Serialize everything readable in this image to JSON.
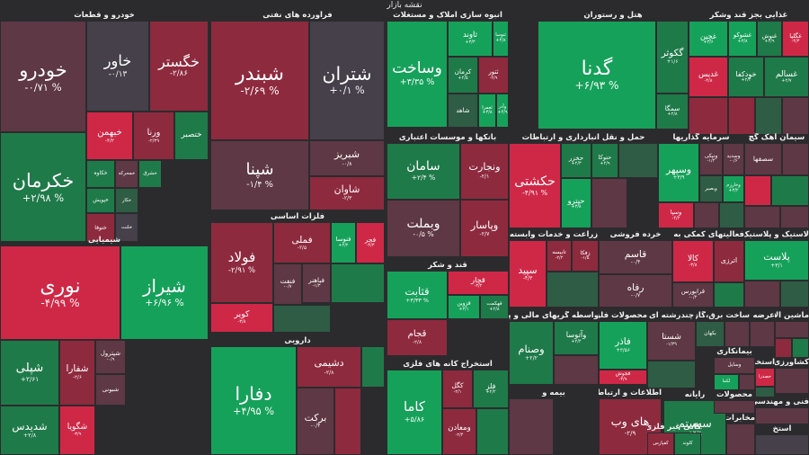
{
  "title": "نقشه بازار",
  "colors": {
    "strong_pos": "#16a15a",
    "mid_pos": "#1f7a49",
    "weak_pos": "#2f5c45",
    "neutral": "#45404a",
    "weak_neg": "#5e3844",
    "mid_neg": "#8e2a3e",
    "strong_neg": "#cf2847"
  },
  "chart_data": {
    "type": "treemap",
    "title": "نقشه بازار",
    "sections": [
      {
        "label": "خودرو و قطعات",
        "tiles": [
          {
            "name": "خودرو",
            "change": "-۰/۷۱ %",
            "v": -0.71
          },
          {
            "name": "خاور",
            "change": "-۰/۱۳",
            "v": -0.13
          },
          {
            "name": "خگستر",
            "change": "-۲/۸۶",
            "v": -2.86
          },
          {
            "name": "خکرمان",
            "change": "+۲/۹۸ %",
            "v": 2.98
          },
          {
            "name": "خبهمن",
            "change": "-۴/۲",
            "v": -4.2
          },
          {
            "name": "ورنا",
            "change": "-۲/۳۹",
            "v": -2.39
          },
          {
            "name": "ختصبر",
            "change": "",
            "v": 1.5
          },
          {
            "name": "خکاوه",
            "change": "",
            "v": 1.5
          },
          {
            "name": "خمحرکه",
            "change": "",
            "v": -0.5
          },
          {
            "name": "خشرق",
            "change": "",
            "v": 1.5
          },
          {
            "name": "خپویش",
            "change": "",
            "v": 1.5
          },
          {
            "name": "خکار",
            "change": "",
            "v": 1.2
          },
          {
            "name": "ختوقا",
            "change": "",
            "v": -1.5
          },
          {
            "name": "خلنت",
            "change": "",
            "v": -0.2
          }
        ]
      },
      {
        "label": "فرآورده های نفتی",
        "tiles": [
          {
            "name": "شبندر",
            "change": "-۲/۶۹ %",
            "v": -2.69
          },
          {
            "name": "شتران",
            "change": "+۰/۱ %",
            "v": 0.1
          },
          {
            "name": "شپنا",
            "change": "-۱/۴ %",
            "v": -1.4
          },
          {
            "name": "شبریز",
            "change": "-۰/۸",
            "v": -0.8
          },
          {
            "name": "شاوان",
            "change": "-۲/۳",
            "v": -2.3
          }
        ]
      },
      {
        "label": "انبوه سازی املاک و مستغلات",
        "tiles": [
          {
            "name": "وساخت",
            "change": "+۳/۳۵ %",
            "v": 3.35
          },
          {
            "name": "ثاوند",
            "change": "+۳/۳",
            "v": 3.3
          },
          {
            "name": "ثنوسا",
            "change": "+۴/۸",
            "v": 4.8
          },
          {
            "name": "کرمان",
            "change": "+۲/۵",
            "v": 2.5
          },
          {
            "name": "ثتور",
            "change": "-۲/۹",
            "v": -2.9
          },
          {
            "name": "شاهد",
            "change": "",
            "v": 0.3
          },
          {
            "name": "ثعمرا",
            "change": "+۳/۸",
            "v": 3.8
          },
          {
            "name": "وآذر",
            "change": "+۴/۹",
            "v": 4.9
          }
        ]
      },
      {
        "label": "هتل و رستوران",
        "tiles": [
          {
            "name": "گدنا",
            "change": "+۶/۹۳ %",
            "v": 6.93
          },
          {
            "name": "گکوثر",
            "change": "+۱/۶",
            "v": 1.6
          },
          {
            "name": "سمگا",
            "change": "+۲/۸",
            "v": 2.8
          }
        ]
      },
      {
        "label": "غذایی بجز قند وشکر",
        "tiles": [
          {
            "name": "غچین",
            "change": "+۳/۶",
            "v": 3.6
          },
          {
            "name": "غشوکو",
            "change": "+۳/۸",
            "v": 3.8
          },
          {
            "name": "غنوش",
            "change": "+۲/۹",
            "v": 2.9
          },
          {
            "name": "غگلپا",
            "change": "-۴/۳",
            "v": -4.3
          },
          {
            "name": "غدیس",
            "change": "-۴/۸",
            "v": -4.8
          },
          {
            "name": "خودکفا",
            "change": "+۲/۴",
            "v": 2.4
          },
          {
            "name": "غسالم",
            "change": "+۲/۷",
            "v": 2.7
          },
          {
            "name": "",
            "change": "",
            "v": -1.5
          },
          {
            "name": "",
            "change": "",
            "v": -2.5
          },
          {
            "name": "",
            "change": "",
            "v": 0.4
          },
          {
            "name": "",
            "change": "",
            "v": -1.2
          }
        ]
      },
      {
        "label": "حمل و نقل انبارداری و ارتباطات",
        "tiles": [
          {
            "name": "حکشتی",
            "change": "-۴/۹۱ %",
            "v": -4.91
          },
          {
            "name": "حخزر",
            "change": "+۲/۳",
            "v": 2.3
          },
          {
            "name": "حتوکا",
            "change": "+۲/۹",
            "v": 2.9
          },
          {
            "name": "حپترو",
            "change": "+۳/۸",
            "v": 3.8
          },
          {
            "name": "",
            "change": "",
            "v": -0.4
          },
          {
            "name": "",
            "change": "",
            "v": 1.0
          }
        ]
      },
      {
        "label": "بانکها و موسسات اعتباری",
        "tiles": [
          {
            "name": "سامان",
            "change": "+۲/۴ %",
            "v": 2.4
          },
          {
            "name": "ونجارت",
            "change": "-۲/۱",
            "v": -2.1
          },
          {
            "name": "وبملت",
            "change": "-۰/۵ %",
            "v": -0.5
          },
          {
            "name": "وپاسار",
            "change": "-۲/۷",
            "v": -2.7
          },
          {
            "name": "",
            "change": "",
            "v": 0.6
          }
        ]
      },
      {
        "label": "سرمایه گذاریها",
        "tiles": [
          {
            "name": "وسپهر",
            "change": "+۳/۹",
            "v": 3.9
          },
          {
            "name": "ونیکی",
            "change": "-۱/۲",
            "v": -1.2
          },
          {
            "name": "وسدید",
            "change": "-۰/۶",
            "v": -0.6
          },
          {
            "name": "وبصیر",
            "change": "",
            "v": 0.5
          },
          {
            "name": "وسپا",
            "change": "-۴/۲",
            "v": -4.2
          },
          {
            "name": "وخارزم",
            "change": "+۳/۲",
            "v": 3.2
          },
          {
            "name": "",
            "change": "",
            "v": -0.3
          },
          {
            "name": "",
            "change": "",
            "v": 1.2
          },
          {
            "name": "",
            "change": "",
            "v": -1.8
          }
        ]
      },
      {
        "label": "سیمان آهک گچ",
        "tiles": [
          {
            "name": "سصفها",
            "change": "",
            "v": -0.4
          },
          {
            "name": "",
            "change": "",
            "v": -0.8
          },
          {
            "name": "",
            "change": "",
            "v": -3.2
          },
          {
            "name": "",
            "change": "",
            "v": 1.6
          },
          {
            "name": "",
            "change": "",
            "v": -0.3
          },
          {
            "name": "",
            "change": "",
            "v": -0.6
          }
        ]
      },
      {
        "label": "شیمیایی",
        "tiles": [
          {
            "name": "نوری",
            "change": "-۴/۹۹ %",
            "v": -4.99
          },
          {
            "name": "شیراز",
            "change": "+۶/۹۶ %",
            "v": 6.96
          },
          {
            "name": "شپلی",
            "change": "+۲/۶۱",
            "v": 2.61
          },
          {
            "name": "شفارا",
            "change": "-۲/۶",
            "v": -2.6
          },
          {
            "name": "شپترول",
            "change": "-۰/۹",
            "v": -0.9
          },
          {
            "name": "شبونی",
            "change": "",
            "v": -0.3
          },
          {
            "name": "شدیدس",
            "change": "+۲/۸",
            "v": 2.8
          },
          {
            "name": "شگویا",
            "change": "-۳/۹",
            "v": -3.9
          }
        ]
      },
      {
        "label": "فلزات اساسی",
        "tiles": [
          {
            "name": "فولاد",
            "change": "-۲/۹۱ %",
            "v": -2.91
          },
          {
            "name": "فملی",
            "change": "-۲/۵",
            "v": -2.5
          },
          {
            "name": "فنوسا",
            "change": "+۴/۲",
            "v": 4.2
          },
          {
            "name": "فجر",
            "change": "-۴/۳",
            "v": -4.3
          },
          {
            "name": "فنفت",
            "change": "-۰/۷",
            "v": -0.7
          },
          {
            "name": "فباهنر",
            "change": "-۱/۳",
            "v": -1.3
          },
          {
            "name": "کویر",
            "change": "-۳/۸",
            "v": -3.8
          },
          {
            "name": "",
            "change": "",
            "v": 2.4
          },
          {
            "name": "",
            "change": "",
            "v": 1.4
          }
        ]
      },
      {
        "label": "دارویی",
        "tiles": [
          {
            "name": "دفارا",
            "change": "+۴/۹۵ %",
            "v": 4.95
          },
          {
            "name": "دشیمی",
            "change": "-۲/۸",
            "v": -2.8
          },
          {
            "name": "برکت",
            "change": "-۰/۴",
            "v": -0.4
          },
          {
            "name": "",
            "change": "",
            "v": 2.6
          },
          {
            "name": "",
            "change": "",
            "v": -1.6
          }
        ]
      },
      {
        "label": "قند و شکر",
        "tiles": [
          {
            "name": "قثابت",
            "change": "+۳/۳۳ %",
            "v": 3.33
          },
          {
            "name": "قچار",
            "change": "-۳/۲",
            "v": -3.2
          },
          {
            "name": "قزوین",
            "change": "+۳/۱",
            "v": 3.1
          },
          {
            "name": "قهکمت",
            "change": "+۲/۸",
            "v": 2.8
          },
          {
            "name": "قجام",
            "change": "-۲/۸",
            "v": -2.8
          }
        ]
      },
      {
        "label": "زراعت و خدمات وابسته",
        "tiles": [
          {
            "name": "سپید",
            "change": "-۴/۳",
            "v": -4.3
          },
          {
            "name": "تابیسه",
            "change": "-۲/۲",
            "v": -2.2
          },
          {
            "name": "زفکا",
            "change": "-۱/۵",
            "v": -1.5
          },
          {
            "name": "",
            "change": "",
            "v": 0.6
          }
        ]
      },
      {
        "label": "خرده فروشی",
        "tiles": [
          {
            "name": "قاسم",
            "change": "-۰/۴",
            "v": -0.4
          },
          {
            "name": "رفاه",
            "change": "-۰/۷",
            "v": -0.7
          }
        ]
      },
      {
        "label": "فعالیتهای کمکی به نهاد",
        "tiles": [
          {
            "name": "کالا",
            "change": "-۳/۸",
            "v": -3.8
          },
          {
            "name": "اترزی",
            "change": "",
            "v": -2.6
          },
          {
            "name": "فرابورس",
            "change": "-۰/۴",
            "v": -0.4
          },
          {
            "name": "",
            "change": "",
            "v": 1.6
          }
        ]
      },
      {
        "label": "لاستیک و پلاستیک",
        "tiles": [
          {
            "name": "پلاست",
            "change": "+۳/۱",
            "v": 3.1
          },
          {
            "name": "",
            "change": "",
            "v": -0.6
          },
          {
            "name": "",
            "change": "",
            "v": 0.4
          }
        ]
      },
      {
        "label": "استخراج کانه های فلزی",
        "tiles": [
          {
            "name": "کاما",
            "change": "+۵/۸۶",
            "v": 5.86
          },
          {
            "name": "کگل",
            "change": "-۲/۱",
            "v": -2.1
          },
          {
            "name": "فلز",
            "change": "+۲/۲",
            "v": 2.2
          },
          {
            "name": "ومعادن",
            "change": "-۲/۴",
            "v": -2.4
          },
          {
            "name": "",
            "change": "",
            "v": 1.8
          }
        ]
      },
      {
        "label": "واسطه گریهای مالی و پولی",
        "tiles": [
          {
            "name": "وصنام",
            "change": "+۲/۲",
            "v": 2.2
          },
          {
            "name": "وآتوسا",
            "change": "+۲/۴",
            "v": 2.4
          },
          {
            "name": "",
            "change": "",
            "v": -0.3
          }
        ]
      },
      {
        "label": "محصولات فلزی",
        "tiles": [
          {
            "name": "فاذر",
            "change": "+۳/۵۶",
            "v": 3.56
          },
          {
            "name": "فجوش",
            "change": "-۳/۹",
            "v": -3.9
          },
          {
            "name": "",
            "change": "",
            "v": 1.2
          }
        ]
      },
      {
        "label": "چندرشته ای",
        "tiles": [
          {
            "name": "شستا",
            "change": "-۱/۳۹",
            "v": -1.39
          },
          {
            "name": "",
            "change": "",
            "v": 0.3
          }
        ]
      },
      {
        "label": "رایانه",
        "tiles": [
          {
            "name": "سیستم",
            "change": "+۲/۸",
            "v": 2.8
          },
          {
            "name": "",
            "change": "",
            "v": -0.8
          }
        ]
      },
      {
        "label": "اطلاعات و ارتباطات",
        "tiles": [
          {
            "name": "های وب",
            "change": "-۲/۹",
            "v": -2.9
          },
          {
            "name": "",
            "change": "",
            "v": -0.2
          }
        ]
      },
      {
        "label": "بیمه و",
        "tiles": [
          {
            "name": "",
            "change": "",
            "v": -1.1
          }
        ]
      },
      {
        "label": "کانی غیر فلزی",
        "tiles": [
          {
            "name": "کفپارس",
            "change": "",
            "v": -2.4
          },
          {
            "name": "کلوند",
            "change": "",
            "v": 2.1
          }
        ]
      },
      {
        "label": "ساخت برق،گاز،بخار و",
        "tiles": [
          {
            "name": "بکهان",
            "change": "",
            "v": 0.3
          },
          {
            "name": "",
            "change": "",
            "v": -1.3
          }
        ]
      },
      {
        "label": "عرضه برق",
        "tiles": [
          {
            "name": "",
            "change": "",
            "v": -0.5
          }
        ]
      },
      {
        "label": "ماشین آلات",
        "tiles": [
          {
            "name": "",
            "change": "",
            "v": -0.4
          },
          {
            "name": "",
            "change": "",
            "v": -2.6
          },
          {
            "name": "",
            "change": "",
            "v": 2.1
          }
        ]
      },
      {
        "label": "کشاورزی",
        "tiles": [
          {
            "name": "",
            "change": "",
            "v": -0.6
          }
        ]
      },
      {
        "label": "بیمانکاری",
        "tiles": [
          {
            "name": "وسایل",
            "change": "",
            "v": -1.4
          },
          {
            "name": "لکما",
            "change": "",
            "v": 3.1
          },
          {
            "name": "",
            "change": "",
            "v": -0.3
          }
        ]
      },
      {
        "label": "محصولات",
        "tiles": [
          {
            "name": "",
            "change": "",
            "v": -0.7
          }
        ]
      },
      {
        "label": "استخراج ساير",
        "tiles": [
          {
            "name": "خصدرا",
            "change": "",
            "v": -3.1
          },
          {
            "name": "",
            "change": "",
            "v": 0.4
          }
        ]
      },
      {
        "label": "فنی و مهندسی",
        "tiles": [
          {
            "name": "",
            "change": "",
            "v": -1.2
          }
        ]
      },
      {
        "label": "مخابرات",
        "tiles": [
          {
            "name": "",
            "change": "",
            "v": -0.5
          }
        ]
      },
      {
        "label": "استخ",
        "tiles": [
          {
            "name": "",
            "change": "",
            "v": 0.2
          }
        ]
      }
    ]
  }
}
